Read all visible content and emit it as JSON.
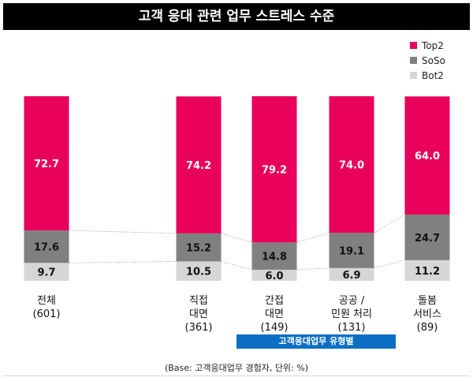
{
  "title": "고객 응대 관련 업무 스트레스 수준",
  "legend": [
    {
      "label": "Top2",
      "color": "#e8005a"
    },
    {
      "label": "SoSo",
      "color": "#808080"
    },
    {
      "label": "Bot2",
      "color": "#d6d6d6"
    }
  ],
  "group_label": "고객응대업무 유형별",
  "footnote": "(Base: 고객응대업무 경험자, 단위: %)",
  "chart_data": {
    "type": "bar",
    "stacked": true,
    "categories": [
      {
        "lines": [
          "전체"
        ],
        "base": "(601)"
      },
      {
        "lines": [
          "직접",
          "대면"
        ],
        "base": "(361)"
      },
      {
        "lines": [
          "간접",
          "대면"
        ],
        "base": "(149)"
      },
      {
        "lines": [
          "공공 /",
          "민원 처리"
        ],
        "base": "(131)"
      },
      {
        "lines": [
          "돌봄",
          "서비스"
        ],
        "base": "(89)"
      }
    ],
    "series": [
      {
        "name": "Bot2",
        "values": [
          9.7,
          10.5,
          6.0,
          6.9,
          11.2
        ],
        "color": "#d6d6d6",
        "labels": [
          "9.7",
          "10.5",
          "6.0",
          "6.9",
          "11.2"
        ]
      },
      {
        "name": "SoSo",
        "values": [
          17.6,
          15.2,
          14.8,
          19.1,
          24.7
        ],
        "color": "#808080",
        "labels": [
          "17.6",
          "15.2",
          "14.8",
          "19.1",
          "24.7"
        ]
      },
      {
        "name": "Top2",
        "values": [
          72.7,
          74.2,
          79.2,
          74.0,
          64.0
        ],
        "color": "#e8005a",
        "labels": [
          "72.7",
          "74.2",
          "79.2",
          "74.0",
          "64.0"
        ]
      }
    ],
    "ylim": [
      0,
      100
    ]
  }
}
